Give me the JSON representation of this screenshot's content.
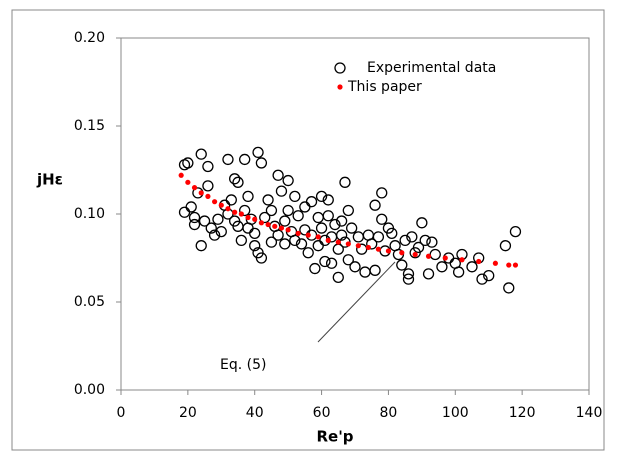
{
  "chart_data": {
    "type": "scatter",
    "x_label": "Re'p",
    "y_label": "jHε",
    "annotation": "Eq. (5)",
    "xlim": [
      0,
      140
    ],
    "xticks": [
      0,
      20,
      40,
      60,
      80,
      100,
      120,
      140
    ],
    "ylim": [
      0,
      0.2
    ],
    "yticks": [
      {
        "value": 0,
        "label": "0.00"
      },
      {
        "value": 0.05,
        "label": "0.05"
      },
      {
        "value": 0.1,
        "label": "0.10"
      },
      {
        "value": 0.15,
        "label": "0.15"
      },
      {
        "value": 0.2,
        "label": "0.20"
      }
    ],
    "grid": false,
    "legend": "top-right",
    "series": [
      {
        "name": "Experimental data",
        "marker": "open-circle",
        "color": "#000000",
        "x": [
          19,
          20,
          19,
          21,
          22,
          22,
          23,
          24,
          24,
          25,
          26,
          26,
          27,
          28,
          29,
          30,
          31,
          32,
          32,
          33,
          34,
          34,
          35,
          35,
          36,
          37,
          37,
          38,
          38,
          39,
          40,
          40,
          41,
          41,
          42,
          42,
          43,
          44,
          45,
          45,
          46,
          47,
          47,
          48,
          49,
          49,
          50,
          50,
          51,
          52,
          52,
          53,
          54,
          55,
          55,
          56,
          57,
          57,
          58,
          59,
          59,
          60,
          60,
          61,
          61,
          62,
          62,
          63,
          63,
          64,
          65,
          65,
          66,
          66,
          67,
          67,
          68,
          68,
          69,
          70,
          71,
          72,
          73,
          74,
          75,
          76,
          76,
          77,
          78,
          78,
          79,
          80,
          81,
          82,
          83,
          84,
          85,
          86,
          86,
          87,
          88,
          89,
          90,
          91,
          92,
          93,
          94,
          96,
          98,
          100,
          101,
          102,
          105,
          107,
          108,
          110,
          115,
          116,
          118
        ],
        "values": [
          0.128,
          0.129,
          0.101,
          0.104,
          0.098,
          0.094,
          0.112,
          0.134,
          0.082,
          0.096,
          0.127,
          0.116,
          0.092,
          0.088,
          0.097,
          0.09,
          0.105,
          0.131,
          0.1,
          0.108,
          0.12,
          0.096,
          0.118,
          0.093,
          0.085,
          0.131,
          0.102,
          0.11,
          0.092,
          0.097,
          0.089,
          0.082,
          0.135,
          0.078,
          0.129,
          0.075,
          0.098,
          0.108,
          0.084,
          0.102,
          0.093,
          0.088,
          0.122,
          0.113,
          0.096,
          0.083,
          0.119,
          0.102,
          0.09,
          0.11,
          0.085,
          0.099,
          0.083,
          0.104,
          0.091,
          0.078,
          0.107,
          0.088,
          0.069,
          0.098,
          0.082,
          0.11,
          0.092,
          0.085,
          0.073,
          0.099,
          0.108,
          0.087,
          0.072,
          0.094,
          0.08,
          0.064,
          0.096,
          0.088,
          0.118,
          0.084,
          0.102,
          0.074,
          0.092,
          0.07,
          0.087,
          0.08,
          0.067,
          0.088,
          0.083,
          0.105,
          0.068,
          0.087,
          0.112,
          0.097,
          0.079,
          0.092,
          0.089,
          0.082,
          0.077,
          0.071,
          0.085,
          0.063,
          0.066,
          0.087,
          0.078,
          0.081,
          0.095,
          0.085,
          0.066,
          0.084,
          0.077,
          0.07,
          0.075,
          0.072,
          0.067,
          0.077,
          0.07,
          0.075,
          0.063,
          0.065,
          0.082,
          0.058,
          0.09
        ]
      },
      {
        "name": "This paper",
        "marker": "dot",
        "color": "#ff0000",
        "x": [
          18,
          20,
          22,
          24,
          26,
          28,
          30,
          32,
          34,
          36,
          38,
          40,
          42,
          44,
          46,
          48,
          50,
          53,
          56,
          59,
          62,
          65,
          68,
          71,
          74,
          77,
          80,
          84,
          88,
          92,
          97,
          102,
          107,
          112,
          116,
          118
        ],
        "values": [
          0.122,
          0.118,
          0.115,
          0.112,
          0.11,
          0.107,
          0.105,
          0.103,
          0.101,
          0.1,
          0.098,
          0.097,
          0.095,
          0.094,
          0.093,
          0.092,
          0.091,
          0.089,
          0.088,
          0.087,
          0.085,
          0.084,
          0.083,
          0.082,
          0.081,
          0.08,
          0.079,
          0.078,
          0.077,
          0.076,
          0.075,
          0.074,
          0.073,
          0.072,
          0.071,
          0.071
        ]
      }
    ]
  }
}
